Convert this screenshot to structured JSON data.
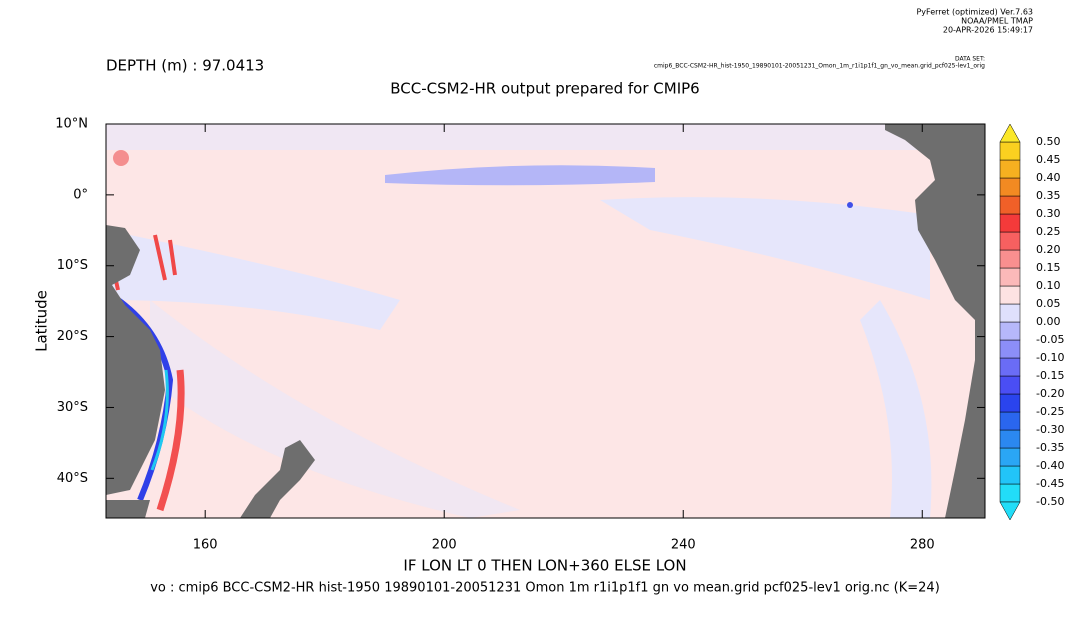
{
  "header": {
    "software": "PyFerret (optimized) Ver.7.63",
    "org": "NOAA/PMEL TMAP",
    "timestamp": "20-APR-2026 15:49:17",
    "dataset_label": "DATA SET:",
    "dataset": "cmip6_BCC-CSM2-HR_hist-1950_19890101-20051231_Omon_1m_r1i1p1f1_gn_vo_mean.grid_pcf025-lev1_orig"
  },
  "depth": "DEPTH (m) : 97.0413",
  "title": "BCC-CSM2-HR output prepared for CMIP6",
  "x_label": "IF LON LT 0 THEN LON+360 ELSE LON",
  "y_label": "Latitude",
  "caption": "vo : cmip6 BCC-CSM2-HR hist-1950 19890101-20051231 Omon 1m r1i1p1f1 gn vo mean.grid pcf025-lev1 orig.nc (K=24)",
  "xlim": [
    143.4,
    290.5
  ],
  "xticks": [
    160,
    200,
    240,
    280
  ],
  "ylim": [
    -45.6,
    10
  ],
  "yticks": [
    {
      "value": 10,
      "label": "10°N"
    },
    {
      "value": 0,
      "label": "0°"
    },
    {
      "value": -10,
      "label": "10°S"
    },
    {
      "value": -20,
      "label": "20°S"
    },
    {
      "value": -30,
      "label": "30°S"
    },
    {
      "value": -40,
      "label": "40°S"
    }
  ],
  "colorbar": {
    "levels": [
      {
        "value": -0.5,
        "label": "-0.50"
      },
      {
        "value": -0.45,
        "label": "-0.45"
      },
      {
        "value": -0.4,
        "label": "-0.40"
      },
      {
        "value": -0.35,
        "label": "-0.35"
      },
      {
        "value": -0.3,
        "label": "-0.30"
      },
      {
        "value": -0.25,
        "label": "-0.25"
      },
      {
        "value": -0.2,
        "label": "-0.20"
      },
      {
        "value": -0.15,
        "label": "-0.15"
      },
      {
        "value": -0.1,
        "label": "-0.10"
      },
      {
        "value": -0.05,
        "label": "-0.05"
      },
      {
        "value": 0,
        "label": "0.00"
      },
      {
        "value": 0.05,
        "label": "0.05"
      },
      {
        "value": 0.1,
        "label": "0.10"
      },
      {
        "value": 0.15,
        "label": "0.15"
      },
      {
        "value": 0.2,
        "label": "0.20"
      },
      {
        "value": 0.25,
        "label": "0.25"
      },
      {
        "value": 0.3,
        "label": "0.30"
      },
      {
        "value": 0.35,
        "label": "0.35"
      },
      {
        "value": 0.4,
        "label": "0.40"
      },
      {
        "value": 0.45,
        "label": "0.45"
      },
      {
        "value": 0.5,
        "label": "0.50"
      }
    ],
    "colors": [
      "#22ddf8",
      "#22c4f8",
      "#2aa6f5",
      "#2b88f0",
      "#2a66ee",
      "#2a44ee",
      "#4a4ef4",
      "#6a6cf6",
      "#8c8ef8",
      "#b6b8fa",
      "#dfe0fc",
      "#fde2e2",
      "#fbb9b9",
      "#f98f8f",
      "#f76060",
      "#f43a3a",
      "#f06028",
      "#f28a22",
      "#f6b020",
      "#fad020",
      "#fbe82a"
    ]
  }
}
